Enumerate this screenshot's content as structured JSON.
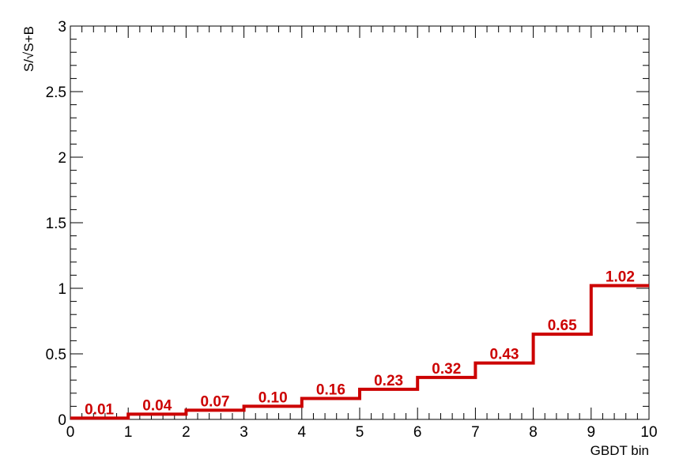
{
  "chart_data": {
    "type": "step",
    "title": "",
    "xlabel": "GBDT bin",
    "ylabel": "S/√S+B",
    "xlim": [
      0,
      10
    ],
    "ylim": [
      0,
      3
    ],
    "x_ticks": [
      0,
      1,
      2,
      3,
      4,
      5,
      6,
      7,
      8,
      9,
      10
    ],
    "x_tick_labels": [
      "0",
      "1",
      "2",
      "3",
      "4",
      "5",
      "6",
      "7",
      "8",
      "9",
      "10"
    ],
    "y_ticks": [
      0,
      0.5,
      1,
      1.5,
      2,
      2.5,
      3
    ],
    "y_tick_labels": [
      "0",
      "0.5",
      "1",
      "1.5",
      "2",
      "2.5",
      "3"
    ],
    "bin_edges": [
      0,
      1,
      2,
      3,
      4,
      5,
      6,
      7,
      8,
      9,
      10
    ],
    "values": [
      0.01,
      0.04,
      0.07,
      0.1,
      0.16,
      0.23,
      0.32,
      0.43,
      0.65,
      1.02
    ],
    "data_labels": [
      "0.01",
      "0.04",
      "0.07",
      "0.10",
      "0.16",
      "0.23",
      "0.32",
      "0.43",
      "0.65",
      "1.02"
    ],
    "line_color": "#cc0000",
    "label_color": "#cc0000",
    "grid": false,
    "legend": "none"
  }
}
